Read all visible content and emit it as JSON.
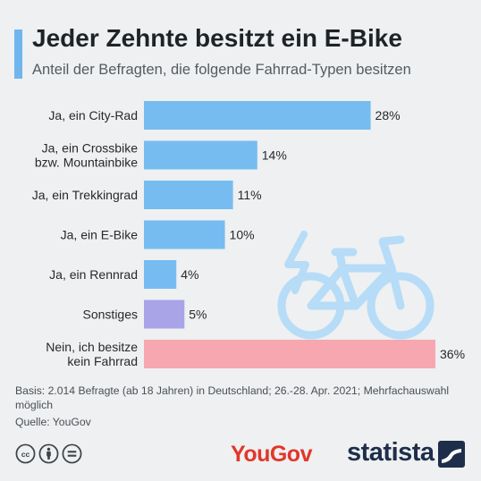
{
  "header": {
    "title": "Jeder Zehnte besitzt ein E-Bike",
    "subtitle": "Anteil der Befragten, die folgende Fahrrad-Typen besitzen"
  },
  "colors": {
    "accent": "#6fb5ee",
    "bar_default": "#76bcf0",
    "bar_other": "#a9a3e8",
    "bar_none": "#f6a7b0",
    "bike_illustration": "#b6dcf7"
  },
  "chart_data": {
    "type": "bar",
    "orientation": "horizontal",
    "categories": [
      "Ja, ein City-Rad",
      "Ja, ein Crossbike bzw. Mountainbike",
      "Ja, ein Trekkingrad",
      "Ja, ein E-Bike",
      "Ja, ein Rennrad",
      "Sonstiges",
      "Nein, ich besitze kein Fahrrad"
    ],
    "category_lines": [
      [
        "Ja, ein City-Rad"
      ],
      [
        "Ja, ein Crossbike",
        "bzw. Mountainbike"
      ],
      [
        "Ja, ein Trekkingrad"
      ],
      [
        "Ja, ein E-Bike"
      ],
      [
        "Ja, ein Rennrad"
      ],
      [
        "Sonstiges"
      ],
      [
        "Nein, ich besitze",
        "kein Fahrrad"
      ]
    ],
    "values": [
      28,
      14,
      11,
      10,
      4,
      5,
      36
    ],
    "value_labels": [
      "28%",
      "14%",
      "11%",
      "10%",
      "4%",
      "5%",
      "36%"
    ],
    "bar_colors": [
      "#76bcf0",
      "#76bcf0",
      "#76bcf0",
      "#76bcf0",
      "#76bcf0",
      "#a9a3e8",
      "#f6a7b0"
    ],
    "unit": "%",
    "xlim": [
      0,
      36
    ],
    "grid": false,
    "legend": "none"
  },
  "footer": {
    "note": "Basis: 2.014 Befragte (ab 18 Jahren) in Deutschland; 26.-28. Apr. 2021; Mehrfachauswahl möglich",
    "source": "Quelle: YouGov"
  },
  "icons": [
    "creative-commons-icon",
    "attribution-icon",
    "no-derivatives-icon",
    "statista-logo-icon",
    "bicycle-illustration-icon"
  ],
  "logos": {
    "yougov": "YouGov",
    "statista": "statista"
  }
}
